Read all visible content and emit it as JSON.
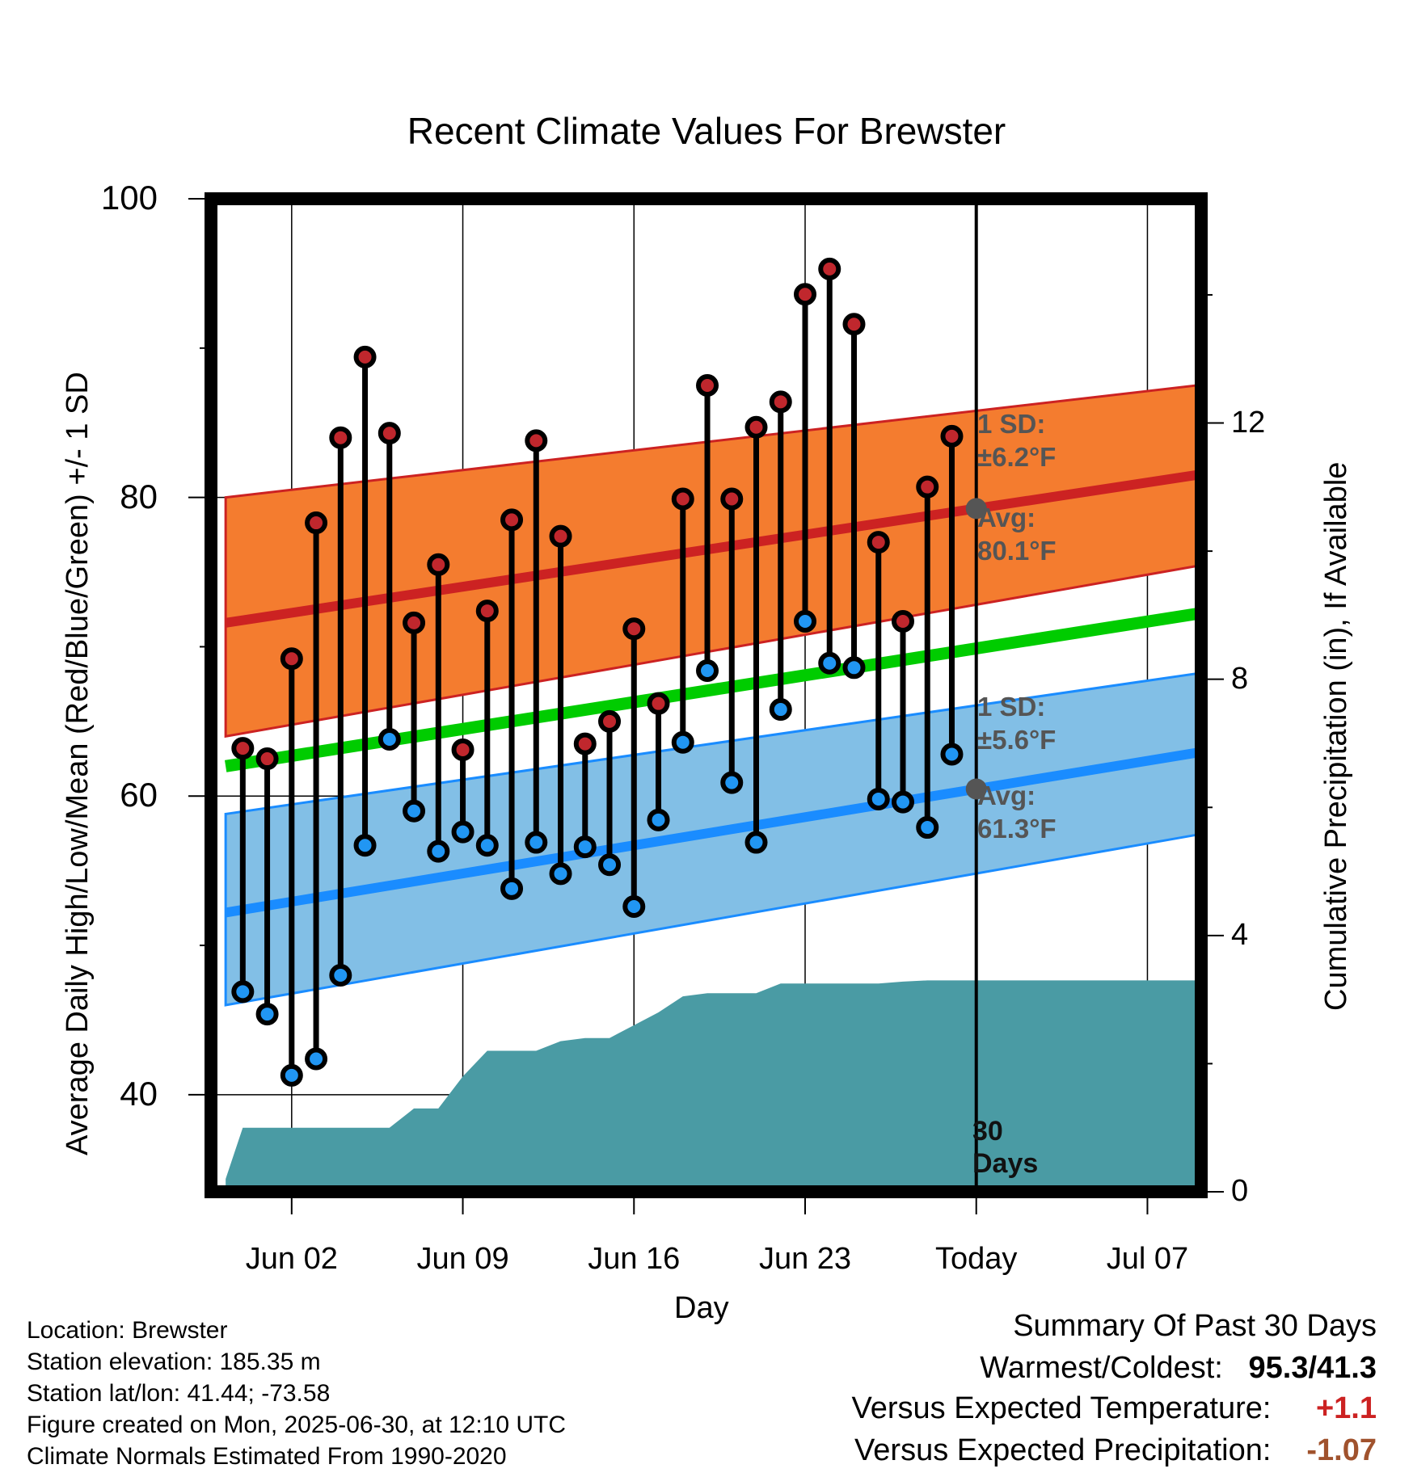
{
  "title": "Recent Climate Values For Brewster",
  "y_axis_label": "Average Daily High/Low/Mean (Red/Blue/Green) +/- 1 SD",
  "y2_axis_label": "Cumulative Precipitation (in), If Available",
  "x_axis_label": "Day",
  "colors": {
    "high": "#cc2222",
    "low": "#1a8cff",
    "mean": "#00cc00",
    "high_band": "#f47c2f",
    "low_band": "#82bfe6",
    "precip": "#4a9ba4",
    "marker_high": "#c0272d",
    "marker_low": "#2196f3"
  },
  "band_labels": {
    "high_sd_title": "1 SD:",
    "high_sd_value": "±6.2°F",
    "high_avg_title": "Avg:",
    "high_avg_value": "80.1°F",
    "low_sd_title": "1 SD:",
    "low_sd_value": "±5.6°F",
    "low_avg_title": "Avg:",
    "low_avg_value": "61.3°F",
    "window": "30 Days"
  },
  "footer": {
    "location": "Location: Brewster",
    "elevation": "Station elevation: 185.35 m",
    "latlon": "Station lat/lon: 41.44; -73.58",
    "created": "Figure created on Mon, 2025-06-30, at 12:10 UTC",
    "normals": "Climate Normals Estimated From 1990-2020"
  },
  "summary": {
    "heading": "Summary Of Past 30 Days",
    "warm_cold_label": "Warmest/Coldest:",
    "warm_cold_value": "95.3/41.3",
    "temp_label": "Versus Expected Temperature:",
    "temp_value": "+1.1",
    "temp_color": "#cc2222",
    "precip_label": "Versus Expected Precipitation:",
    "precip_value": "-1.07",
    "precip_color": "#a0522d"
  },
  "chart_data": {
    "type": "line",
    "x_tick_labels": [
      "Jun 02",
      "Jun 09",
      "Jun 16",
      "Jun 23",
      "Today",
      "Jul 07"
    ],
    "x_tick_days": [
      2,
      9,
      16,
      23,
      30,
      37
    ],
    "x_range_days": [
      -1.3,
      39.2
    ],
    "ylim": [
      33.5,
      100
    ],
    "y_ticks": [
      40,
      60,
      80,
      100
    ],
    "y2lim": [
      0,
      15.5
    ],
    "y2_ticks": [
      0,
      4,
      8,
      12
    ],
    "today_day": 30,
    "grid": true,
    "observed": {
      "days": [
        -0.0,
        1,
        2,
        3,
        4,
        5,
        6,
        7,
        8,
        9,
        10,
        11,
        12,
        13,
        14,
        15,
        16,
        17,
        18,
        19,
        20,
        21,
        22,
        23,
        24,
        25,
        26,
        27,
        28,
        29
      ],
      "high": [
        63.2,
        62.5,
        69.2,
        78.3,
        84.0,
        89.4,
        84.3,
        71.6,
        75.5,
        63.1,
        72.4,
        78.5,
        83.8,
        77.4,
        63.5,
        65.0,
        71.2,
        66.2,
        79.9,
        87.5,
        79.9,
        84.7,
        86.4,
        93.6,
        95.3,
        91.6,
        77.0,
        71.7,
        80.7,
        84.1
      ],
      "low": [
        46.9,
        45.4,
        41.3,
        42.4,
        48.0,
        56.7,
        63.8,
        59.0,
        56.3,
        57.6,
        56.7,
        53.8,
        56.9,
        54.8,
        56.6,
        55.4,
        52.6,
        58.4,
        63.6,
        68.4,
        60.9,
        56.9,
        65.8,
        71.7,
        68.9,
        68.6,
        59.8,
        59.6,
        57.9,
        62.8
      ]
    },
    "normals": {
      "days": [
        -0.7,
        39.0
      ],
      "high_avg": [
        71.6,
        81.5
      ],
      "high_sd_band": [
        [
          64.0,
          80.0
        ],
        [
          75.4,
          87.5
        ]
      ],
      "low_avg": [
        52.2,
        62.9
      ],
      "low_sd_band": [
        [
          46.0,
          58.8
        ],
        [
          57.4,
          68.2
        ]
      ],
      "mean_avg": [
        62.0,
        72.2
      ]
    },
    "precipitation": {
      "days": [
        -0.7,
        0.0,
        6.0,
        7.0,
        8.0,
        9.0,
        10.0,
        11.0,
        12.0,
        13.0,
        14.0,
        15.0,
        16.0,
        17.0,
        18.0,
        19.0,
        20.0,
        21.0,
        22.0,
        23.0,
        26.0,
        27.0,
        28.0,
        29.0,
        30.0,
        39.0
      ],
      "cumulative_in": [
        0.2,
        1.0,
        1.0,
        1.3,
        1.3,
        1.8,
        2.2,
        2.2,
        2.2,
        2.35,
        2.4,
        2.4,
        2.6,
        2.8,
        3.05,
        3.1,
        3.1,
        3.1,
        3.25,
        3.25,
        3.25,
        3.28,
        3.3,
        3.3,
        3.3,
        3.3
      ]
    }
  }
}
